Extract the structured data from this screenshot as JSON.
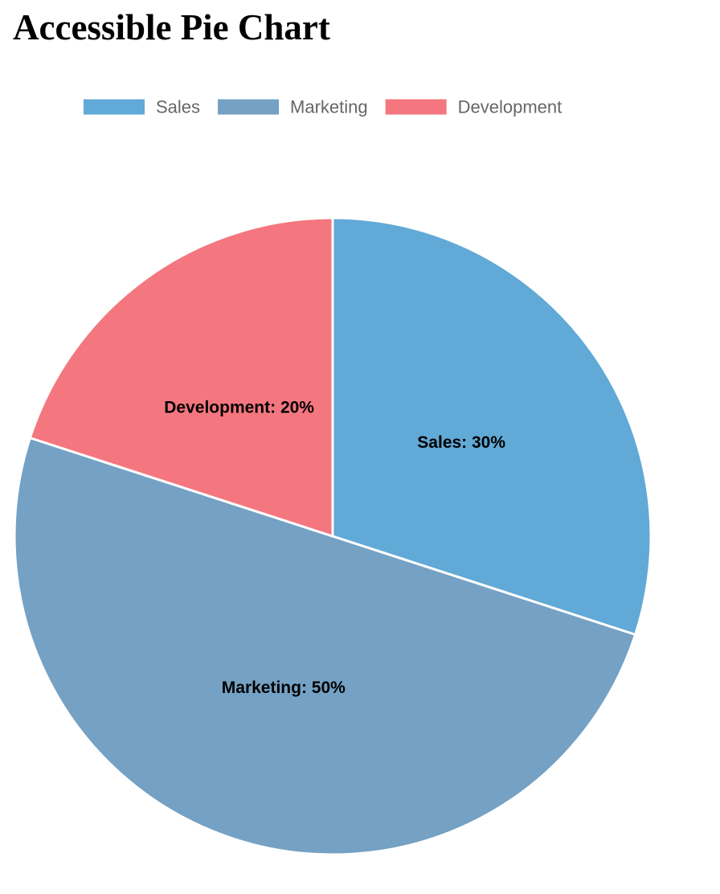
{
  "page": {
    "title": "Accessible Pie Chart"
  },
  "chart_data": {
    "type": "pie",
    "title": "",
    "categories": [
      "Sales",
      "Marketing",
      "Development"
    ],
    "values": [
      30,
      50,
      20
    ],
    "value_suffix": "%",
    "colors": [
      "#61a9d6",
      "#74a1c4",
      "#f4777f"
    ],
    "legend_position": "top",
    "slice_labels": [
      "Sales: 30%",
      "Marketing: 50%",
      "Development: 20%"
    ]
  }
}
